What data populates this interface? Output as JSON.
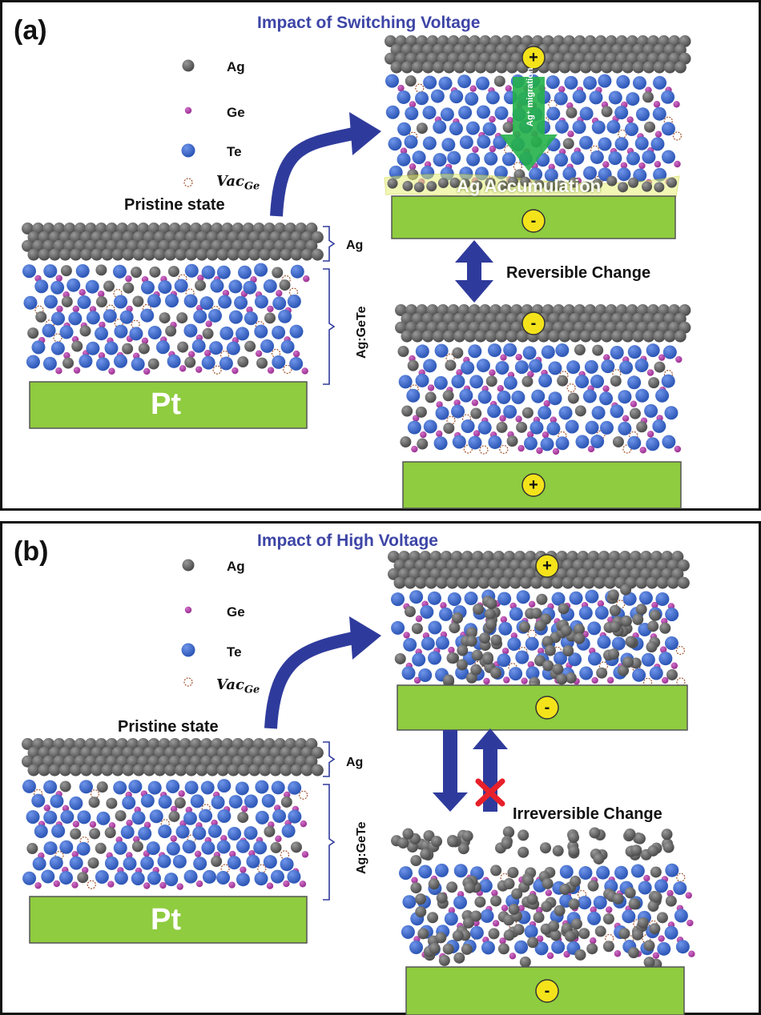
{
  "panel_a": {
    "label": "(a)",
    "title": "Impact of Switching Voltage",
    "legend": {
      "ag": "Ag",
      "ge": "Ge",
      "te": "Te",
      "vac": "Vac",
      "vac_sub": "Ge"
    },
    "pristine_label": "Pristine state",
    "ag_bracket": "Ag",
    "agegete_bracket": "Ag:GeTe",
    "pt_label": "Pt",
    "top_electrode_sign": "+",
    "bottom_electrode_sign": "-",
    "migration_label": "Ag⁺ migration",
    "accumulation_label": "Ag Accumulation",
    "change_label": "Reversible Change",
    "reverse_top_sign": "-",
    "reverse_bottom_sign": "+"
  },
  "panel_b": {
    "label": "(b)",
    "title": "Impact of High Voltage",
    "legend": {
      "ag": "Ag",
      "ge": "Ge",
      "te": "Te",
      "vac": "Vac",
      "vac_sub": "Ge"
    },
    "pristine_label": "Pristine state",
    "ag_bracket": "Ag",
    "agegete_bracket": "Ag:GeTe",
    "pt_label": "Pt",
    "top_electrode_sign": "+",
    "bottom_electrode_sign": "-",
    "change_label": "Irreversible Change",
    "broken_bottom_sign": "-"
  },
  "colors": {
    "ag": "#4a4a4a",
    "ge": "#9a2f92",
    "te": "#2b55b5",
    "vac": "#a0522d",
    "pt": "#8fcc3f",
    "arrow": "#2f3b9c",
    "title": "#3d45a6",
    "cross": "#e8202a",
    "sign_fill": "#f4e31a",
    "migration": "#25b04a",
    "highlight": "#e6f07a"
  }
}
